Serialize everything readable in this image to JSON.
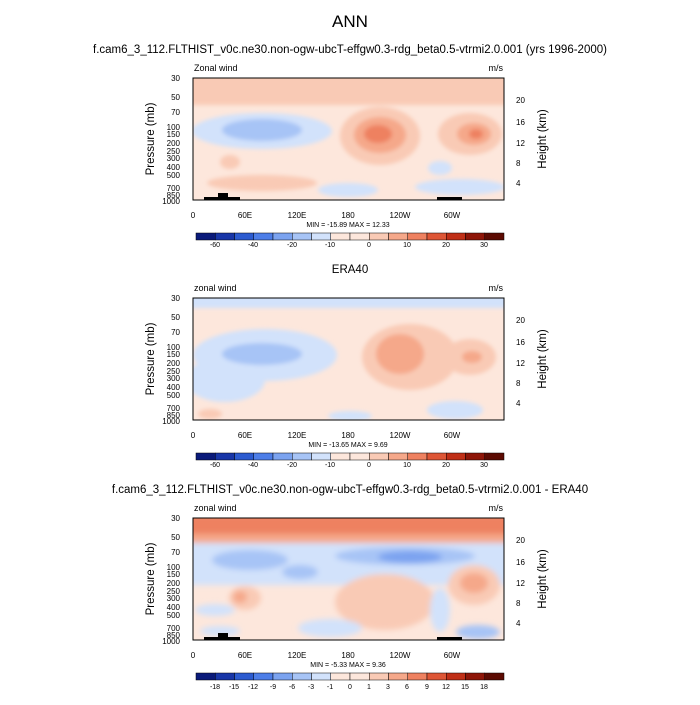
{
  "page": {
    "main_title": "ANN"
  },
  "chart_data": [
    {
      "type": "heatmap",
      "title": "f.cam6_3_112.FLTHIST_v0c.ne30.non-ogw-ubcT-effgw0.3-rdg_beta0.5-vtrmi2.0.001 (yrs 1996-2000)",
      "left_label": "Zonal wind",
      "right_label": "m/s",
      "ylabel": "Pressure (mb)",
      "y2label": "Height (km)",
      "x_ticks": [
        "0",
        "60E",
        "120E",
        "180",
        "120W",
        "60W"
      ],
      "y_ticks": [
        "30",
        "50",
        "70",
        "100",
        "150",
        "200",
        "250",
        "300",
        "400",
        "500",
        "700",
        "850",
        "1000"
      ],
      "y2_ticks": [
        "20",
        "16",
        "12",
        "8",
        "4"
      ],
      "min_max": "MIN = -15.89  MAX = 12.33",
      "colorbar_labels": [
        "-60",
        "-40",
        "-20",
        "-10",
        "0",
        "10",
        "20",
        "30"
      ],
      "min": -15.89,
      "max": 12.33
    },
    {
      "type": "heatmap",
      "title": "ERA40",
      "left_label": "zonal wind",
      "right_label": "m/s",
      "ylabel": "Pressure (mb)",
      "y2label": "Height (km)",
      "x_ticks": [
        "0",
        "60E",
        "120E",
        "180",
        "120W",
        "60W"
      ],
      "y_ticks": [
        "30",
        "50",
        "70",
        "100",
        "150",
        "200",
        "250",
        "300",
        "400",
        "500",
        "700",
        "850",
        "1000"
      ],
      "y2_ticks": [
        "20",
        "16",
        "12",
        "8",
        "4"
      ],
      "min_max": "MIN = -13.65  MAX =  9.69",
      "colorbar_labels": [
        "-60",
        "-40",
        "-20",
        "-10",
        "0",
        "10",
        "20",
        "30"
      ],
      "min": -13.65,
      "max": 9.69
    },
    {
      "type": "heatmap",
      "title": "f.cam6_3_112.FLTHIST_v0c.ne30.non-ogw-ubcT-effgw0.3-rdg_beta0.5-vtrmi2.0.001 - ERA40",
      "left_label": "zonal wind",
      "right_label": "m/s",
      "ylabel": "Pressure (mb)",
      "y2label": "Height (km)",
      "x_ticks": [
        "0",
        "60E",
        "120E",
        "180",
        "120W",
        "60W"
      ],
      "y_ticks": [
        "30",
        "50",
        "70",
        "100",
        "150",
        "200",
        "250",
        "300",
        "400",
        "500",
        "700",
        "850",
        "1000"
      ],
      "y2_ticks": [
        "20",
        "16",
        "12",
        "8",
        "4"
      ],
      "min_max": "MIN = -5.33  MAX =  9.36",
      "colorbar_labels": [
        "-18",
        "-15",
        "-12",
        "-9",
        "-6",
        "-3",
        "-1",
        "0",
        "1",
        "3",
        "6",
        "9",
        "12",
        "15",
        "18"
      ],
      "min": -5.33,
      "max": 9.36
    }
  ],
  "colors": {
    "palette": [
      "#0a1a7a",
      "#1836a8",
      "#2c5bd0",
      "#4d7ee8",
      "#7ba3f0",
      "#a7c4f6",
      "#d2e2fb",
      "#fde7dc",
      "#f9cab5",
      "#f5a88a",
      "#ee8160",
      "#de5636",
      "#c02f17",
      "#8e1508",
      "#5c0a02"
    ]
  }
}
